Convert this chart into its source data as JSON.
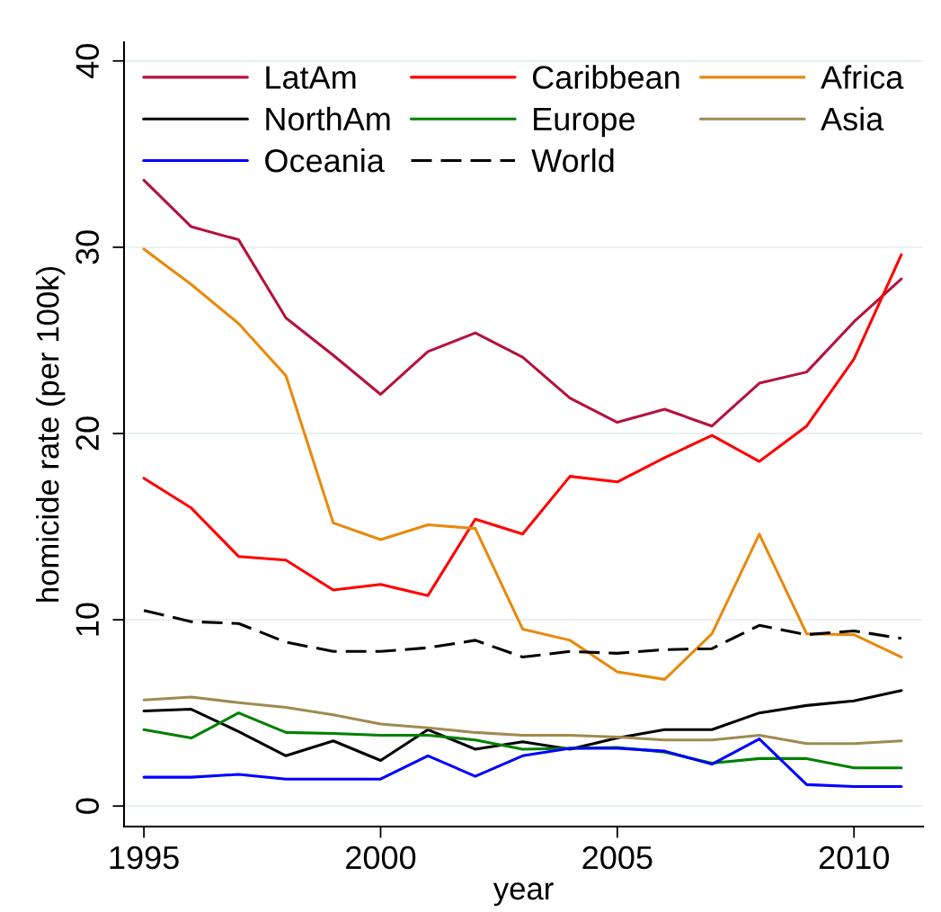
{
  "chart_data": {
    "type": "line",
    "xlabel": "year",
    "ylabel": "homicide rate (per 100k)",
    "x": [
      1995,
      1996,
      1997,
      1998,
      1999,
      2000,
      2001,
      2002,
      2003,
      2004,
      2005,
      2006,
      2007,
      2008,
      2009,
      2010,
      2011
    ],
    "xlim": [
      1994.58,
      2011.46
    ],
    "ylim": [
      -1.1,
      41
    ],
    "xticks": [
      1995,
      2000,
      2005,
      2010
    ],
    "yticks": [
      0,
      10,
      20,
      30,
      40
    ],
    "grid": "y",
    "legend": "top",
    "line_style": "solid",
    "series": [
      {
        "name": "LatAm",
        "color": "#b5123e",
        "values": [
          33.6,
          31.1,
          30.4,
          26.2,
          24.2,
          22.1,
          24.4,
          25.4,
          24.1,
          21.9,
          20.6,
          21.3,
          20.4,
          22.7,
          23.3,
          26.0,
          28.3
        ]
      },
      {
        "name": "Caribbean",
        "color": "#ff0000",
        "values": [
          17.6,
          16.0,
          13.4,
          13.2,
          11.6,
          11.9,
          11.3,
          15.4,
          14.6,
          17.7,
          17.4,
          18.7,
          19.9,
          18.5,
          20.4,
          24.0,
          29.6
        ]
      },
      {
        "name": "Africa",
        "color": "#e8890c",
        "values": [
          29.9,
          28.0,
          25.9,
          23.1,
          15.2,
          14.3,
          15.1,
          14.9,
          9.5,
          8.9,
          7.2,
          6.8,
          9.25,
          14.6,
          9.25,
          9.2,
          8.0
        ]
      },
      {
        "name": "NorthAm",
        "color": "#000000",
        "values": [
          5.1,
          5.2,
          4.0,
          2.7,
          3.5,
          2.45,
          4.1,
          3.05,
          3.45,
          3.05,
          3.65,
          4.1,
          4.1,
          5.0,
          5.4,
          5.65,
          6.2
        ]
      },
      {
        "name": "Europe",
        "color": "#008000",
        "values": [
          4.1,
          3.65,
          5.0,
          3.95,
          3.9,
          3.8,
          3.8,
          3.55,
          3.05,
          3.1,
          3.15,
          2.9,
          2.3,
          2.55,
          2.55,
          2.05,
          2.05
        ]
      },
      {
        "name": "Asia",
        "color": "#a08a50",
        "values": [
          5.7,
          5.85,
          5.55,
          5.3,
          4.9,
          4.4,
          4.2,
          3.95,
          3.8,
          3.8,
          3.7,
          3.55,
          3.55,
          3.8,
          3.35,
          3.35,
          3.5
        ]
      },
      {
        "name": "Oceania",
        "color": "#0000ff",
        "values": [
          1.55,
          1.55,
          1.7,
          1.45,
          1.45,
          1.45,
          2.7,
          1.6,
          2.7,
          3.1,
          3.1,
          2.95,
          2.25,
          3.6,
          1.15,
          1.05,
          1.05
        ]
      },
      {
        "name": "World",
        "color": "#000000",
        "line_style": "dashed",
        "values": [
          10.5,
          9.9,
          9.8,
          8.8,
          8.3,
          8.3,
          8.5,
          8.9,
          8.0,
          8.3,
          8.2,
          8.4,
          8.45,
          9.7,
          9.2,
          9.4,
          9.0
        ]
      }
    ]
  }
}
